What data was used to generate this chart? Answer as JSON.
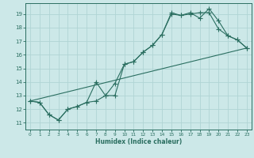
{
  "xlabel": "Humidex (Indice chaleur)",
  "xlim": [
    -0.5,
    23.5
  ],
  "ylim": [
    10.5,
    19.8
  ],
  "xticks": [
    0,
    1,
    2,
    3,
    4,
    5,
    6,
    7,
    8,
    9,
    10,
    11,
    12,
    13,
    14,
    15,
    16,
    17,
    18,
    19,
    20,
    21,
    22,
    23
  ],
  "yticks": [
    11,
    12,
    13,
    14,
    15,
    16,
    17,
    18,
    19
  ],
  "bg_color": "#cce8e8",
  "grid_color": "#b0d4d4",
  "line_color": "#2a6e60",
  "series1_x": [
    0,
    1,
    2,
    3,
    4,
    5,
    6,
    7,
    8,
    9,
    10,
    11,
    12,
    13,
    14,
    15,
    16,
    17,
    18,
    19,
    20,
    21,
    22,
    23
  ],
  "series1_y": [
    12.6,
    12.5,
    11.6,
    11.2,
    12.0,
    12.2,
    12.5,
    12.6,
    13.0,
    13.9,
    15.3,
    15.5,
    16.2,
    16.7,
    17.5,
    19.0,
    18.9,
    19.0,
    19.1,
    19.1,
    17.9,
    17.4,
    17.1,
    16.5
  ],
  "series2_x": [
    0,
    1,
    2,
    3,
    4,
    5,
    6,
    7,
    8,
    9,
    10,
    11,
    12,
    13,
    14,
    15,
    16,
    17,
    18,
    19,
    20,
    21,
    22,
    23
  ],
  "series2_y": [
    12.6,
    12.5,
    11.6,
    11.2,
    12.0,
    12.2,
    12.5,
    14.0,
    13.0,
    13.0,
    15.3,
    15.5,
    16.2,
    16.7,
    17.5,
    19.1,
    18.9,
    19.1,
    18.7,
    19.4,
    18.5,
    17.4,
    17.1,
    16.5
  ],
  "series3_x": [
    0,
    23
  ],
  "series3_y": [
    12.6,
    16.5
  ]
}
